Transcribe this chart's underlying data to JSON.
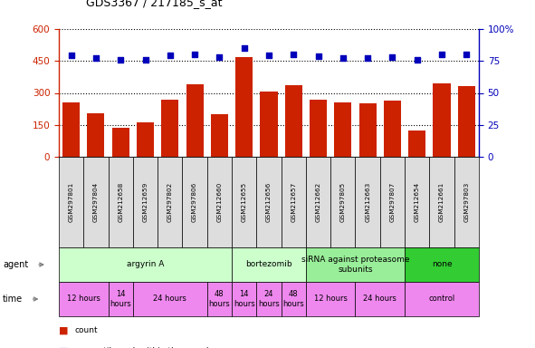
{
  "title": "GDS3367 / 217185_s_at",
  "samples": [
    "GSM297801",
    "GSM297804",
    "GSM212658",
    "GSM212659",
    "GSM297802",
    "GSM297806",
    "GSM212660",
    "GSM212655",
    "GSM212656",
    "GSM212657",
    "GSM212662",
    "GSM297805",
    "GSM212663",
    "GSM297807",
    "GSM212654",
    "GSM212661",
    "GSM297803"
  ],
  "counts": [
    255,
    205,
    135,
    160,
    270,
    340,
    200,
    470,
    305,
    335,
    270,
    255,
    250,
    265,
    125,
    345,
    330
  ],
  "percentiles": [
    475,
    465,
    455,
    456,
    476,
    480,
    468,
    510,
    475,
    480,
    472,
    465,
    465,
    469,
    455,
    480,
    479
  ],
  "ylim_left": [
    0,
    600
  ],
  "ylim_right": [
    0,
    100
  ],
  "yticks_left": [
    0,
    150,
    300,
    450,
    600
  ],
  "yticks_right": [
    0,
    25,
    50,
    75,
    100
  ],
  "bar_color": "#cc2200",
  "dot_color": "#0000bb",
  "sample_box_color": "#dddddd",
  "agent_groups": [
    {
      "label": "argyrin A",
      "start": 0,
      "end": 7,
      "color": "#ccffcc"
    },
    {
      "label": "bortezomib",
      "start": 7,
      "end": 10,
      "color": "#ccffcc"
    },
    {
      "label": "siRNA against proteasome\nsubunits",
      "start": 10,
      "end": 14,
      "color": "#99ee99"
    },
    {
      "label": "none",
      "start": 14,
      "end": 17,
      "color": "#33cc33"
    }
  ],
  "time_groups": [
    {
      "label": "12 hours",
      "start": 0,
      "end": 2
    },
    {
      "label": "14\nhours",
      "start": 2,
      "end": 3
    },
    {
      "label": "24 hours",
      "start": 3,
      "end": 6
    },
    {
      "label": "48\nhours",
      "start": 6,
      "end": 7
    },
    {
      "label": "14\nhours",
      "start": 7,
      "end": 8
    },
    {
      "label": "24\nhours",
      "start": 8,
      "end": 9
    },
    {
      "label": "48\nhours",
      "start": 9,
      "end": 10
    },
    {
      "label": "12 hours",
      "start": 10,
      "end": 12
    },
    {
      "label": "24 hours",
      "start": 12,
      "end": 14
    },
    {
      "label": "control",
      "start": 14,
      "end": 17
    }
  ],
  "time_color": "#ee88ee"
}
